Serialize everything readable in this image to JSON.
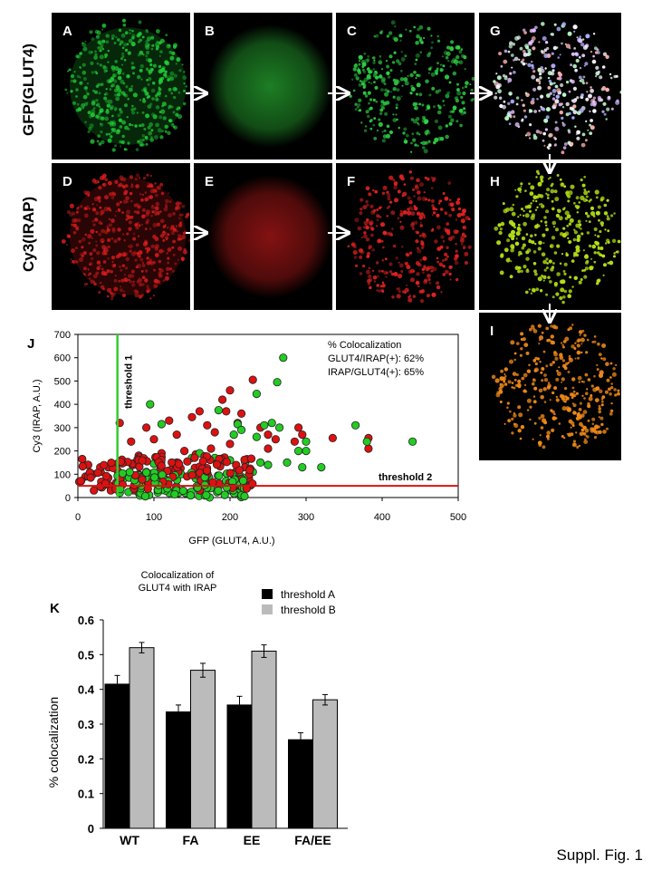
{
  "row_labels": {
    "top": "GFP(GLUT4)",
    "bottom": "Cy3(IRAP)"
  },
  "panels": [
    {
      "label": "A",
      "tone": "#22d63a",
      "style": "dots-dim"
    },
    {
      "label": "B",
      "tone": "#27a830",
      "style": "blur"
    },
    {
      "label": "C",
      "tone": "#2ed145",
      "style": "dots"
    },
    {
      "label": "G",
      "tone": "#e8e8f0",
      "style": "multi"
    },
    {
      "label": "D",
      "tone": "#e31d1d",
      "style": "dots-dim"
    },
    {
      "label": "E",
      "tone": "#b01818",
      "style": "blur"
    },
    {
      "label": "F",
      "tone": "#e52222",
      "style": "dots"
    },
    {
      "label": "H",
      "tone": "#b6e316",
      "style": "dots-bright"
    },
    {
      "label": "I",
      "tone": "#f08a18",
      "style": "dots-bright"
    }
  ],
  "chart_data": [
    {
      "panel_label": "J",
      "type": "scatter",
      "xlabel": "GFP (GLUT4, A.U.)",
      "ylabel": "Cy3 (IRAP, A.U.)",
      "xlim": [
        0,
        500
      ],
      "ylim": [
        0,
        700
      ],
      "xticks": [
        "0",
        "100",
        "200",
        "300",
        "400",
        "500"
      ],
      "yticks": [
        "0",
        "100",
        "200",
        "300",
        "400",
        "500",
        "600",
        "700"
      ],
      "grid": false,
      "annotations": [
        "% Colocalization",
        "GLUT4/IRAP(+): 62%",
        "IRAP/GLUT4(+): 65%"
      ],
      "thresholds": [
        {
          "label": "threshold 1",
          "axis": "x",
          "value": 52,
          "color": "#33cc33"
        },
        {
          "label": "threshold 2",
          "axis": "y",
          "value": 50,
          "color": "#dd1111"
        }
      ],
      "series": [
        {
          "color": "#dd1111",
          "points": [
            [
              230,
              505
            ],
            [
              200,
              460
            ],
            [
              190,
              420
            ],
            [
              160,
              370
            ],
            [
              150,
              345
            ],
            [
              120,
              330
            ],
            [
              90,
              300
            ],
            [
              55,
              320
            ],
            [
              70,
              240
            ],
            [
              100,
              250
            ],
            [
              130,
              270
            ],
            [
              170,
              310
            ],
            [
              210,
              320
            ],
            [
              240,
              300
            ],
            [
              250,
              270
            ],
            [
              260,
              250
            ],
            [
              290,
              300
            ],
            [
              295,
              270
            ],
            [
              285,
              240
            ],
            [
              335,
              255
            ],
            [
              382,
              255
            ],
            [
              382,
              210
            ],
            [
              215,
              360
            ],
            [
              195,
              370
            ],
            [
              180,
              280
            ],
            [
              140,
              200
            ],
            [
              110,
              190
            ],
            [
              80,
              180
            ],
            [
              60,
              150
            ],
            [
              40,
              130
            ],
            [
              30,
              110
            ],
            [
              20,
              100
            ],
            [
              10,
              90
            ],
            [
              200,
              230
            ],
            [
              175,
              210
            ],
            [
              155,
              185
            ],
            [
              250,
              210
            ]
          ]
        },
        {
          "color": "#22cc22",
          "points": [
            [
              270,
              600
            ],
            [
              262,
              495
            ],
            [
              235,
              445
            ],
            [
              185,
              375
            ],
            [
              95,
              400
            ],
            [
              110,
              315
            ],
            [
              210,
              315
            ],
            [
              215,
              290
            ],
            [
              205,
              270
            ],
            [
              245,
              310
            ],
            [
              255,
              320
            ],
            [
              265,
              300
            ],
            [
              235,
              260
            ],
            [
              300,
              240
            ],
            [
              290,
              200
            ],
            [
              300,
              200
            ],
            [
              365,
              310
            ],
            [
              380,
              240
            ],
            [
              440,
              240
            ],
            [
              320,
              130
            ],
            [
              295,
              130
            ],
            [
              240,
              150
            ],
            [
              220,
              150
            ],
            [
              200,
              160
            ],
            [
              180,
              170
            ],
            [
              160,
              190
            ],
            [
              150,
              170
            ],
            [
              130,
              150
            ],
            [
              100,
              145
            ],
            [
              90,
              110
            ],
            [
              70,
              100
            ],
            [
              60,
              80
            ],
            [
              55,
              20
            ],
            [
              80,
              20
            ],
            [
              120,
              20
            ],
            [
              160,
              30
            ],
            [
              200,
              40
            ],
            [
              210,
              80
            ],
            [
              230,
              110
            ],
            [
              250,
              140
            ],
            [
              275,
              150
            ]
          ]
        }
      ]
    },
    {
      "panel_label": "K",
      "type": "bar",
      "title": "Colocalization of GLUT4 with IRAP",
      "xlabel": "",
      "ylabel": "% colocalization",
      "ylim": [
        0,
        0.6
      ],
      "yticks": [
        "0",
        "0.1",
        "0.2",
        "0.3",
        "0.4",
        "0.5",
        "0.6"
      ],
      "categories": [
        "WT",
        "FA",
        "EE",
        "FA/EE"
      ],
      "legend_position": "top-right",
      "series": [
        {
          "name": "threshold A",
          "color": "#000000",
          "values": [
            0.415,
            0.335,
            0.355,
            0.255
          ],
          "errors": [
            0.025,
            0.02,
            0.025,
            0.02
          ]
        },
        {
          "name": "threshold B",
          "color": "#bbbbbb",
          "values": [
            0.52,
            0.455,
            0.51,
            0.37
          ],
          "errors": [
            0.015,
            0.02,
            0.018,
            0.015
          ]
        }
      ]
    }
  ],
  "footer": "Suppl. Fig. 1"
}
